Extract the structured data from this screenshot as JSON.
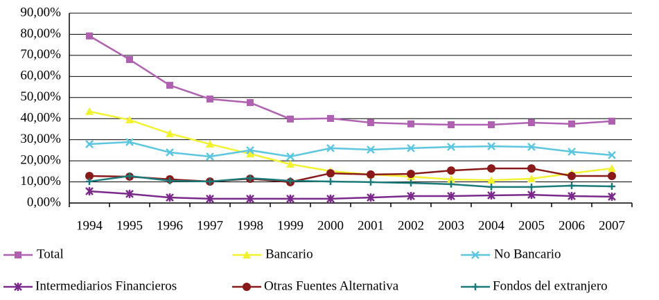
{
  "chart_data": {
    "type": "line",
    "categories": [
      "1994",
      "1995",
      "1996",
      "1997",
      "1998",
      "1999",
      "2000",
      "2001",
      "2002",
      "2003",
      "2004",
      "2005",
      "2006",
      "2007"
    ],
    "series": [
      {
        "name": "Total",
        "color": "#b060b0",
        "marker": "square",
        "values": [
          79.2,
          68,
          55.8,
          49.3,
          47.6,
          39.8,
          40.1,
          38.1,
          37.5,
          37.1,
          37.1,
          38.1,
          37.5,
          38.8
        ]
      },
      {
        "name": "Bancario",
        "color": "#f2f230",
        "marker": "triangle",
        "values": [
          43.4,
          39.4,
          32.9,
          27.9,
          23.3,
          18.4,
          15.1,
          13.5,
          12.5,
          11.2,
          10.8,
          11.5,
          14.1,
          16.4
        ]
      },
      {
        "name": "No Bancario",
        "color": "#5cc6e0",
        "marker": "x",
        "values": [
          27.9,
          28.9,
          24,
          22,
          25,
          22,
          26,
          25.3,
          26,
          26.6,
          26.9,
          26.6,
          24.3,
          22.7
        ]
      },
      {
        "name": "Intermediarios Financieros",
        "color": "#7a2a8a",
        "marker": "star",
        "values": [
          5.6,
          4.3,
          2.6,
          2,
          2,
          2,
          2,
          2.6,
          3.3,
          3.3,
          3.6,
          3.9,
          3.3,
          3
        ]
      },
      {
        "name": "Otras Fuentes Alternativa",
        "color": "#8a1a1a",
        "marker": "circle",
        "values": [
          12.8,
          12.5,
          11.2,
          10.2,
          11.5,
          9.9,
          14.1,
          13.5,
          13.8,
          15.4,
          16.4,
          16.4,
          12.8,
          12.8
        ]
      },
      {
        "name": "Fondos del extranjero",
        "color": "#1a7a7a",
        "marker": "plus",
        "values": [
          10.2,
          12.8,
          10.5,
          10.2,
          11.8,
          10.5,
          10.2,
          9.9,
          9.5,
          8.9,
          7.6,
          7.6,
          8.2,
          7.9
        ]
      }
    ],
    "ylim": [
      0,
      90
    ],
    "yticks": [
      {
        "value": 0,
        "label": "0,00%"
      },
      {
        "value": 10,
        "label": "10,00%"
      },
      {
        "value": 20,
        "label": "20,00%"
      },
      {
        "value": 30,
        "label": "30,00%"
      },
      {
        "value": 40,
        "label": "40,00%"
      },
      {
        "value": 50,
        "label": "50,00%"
      },
      {
        "value": 60,
        "label": "60,00%"
      },
      {
        "value": 70,
        "label": "70,00%"
      },
      {
        "value": 80,
        "label": "80,00%"
      },
      {
        "value": 90,
        "label": "90,00%"
      }
    ],
    "grid": true,
    "legend": "bottom"
  }
}
